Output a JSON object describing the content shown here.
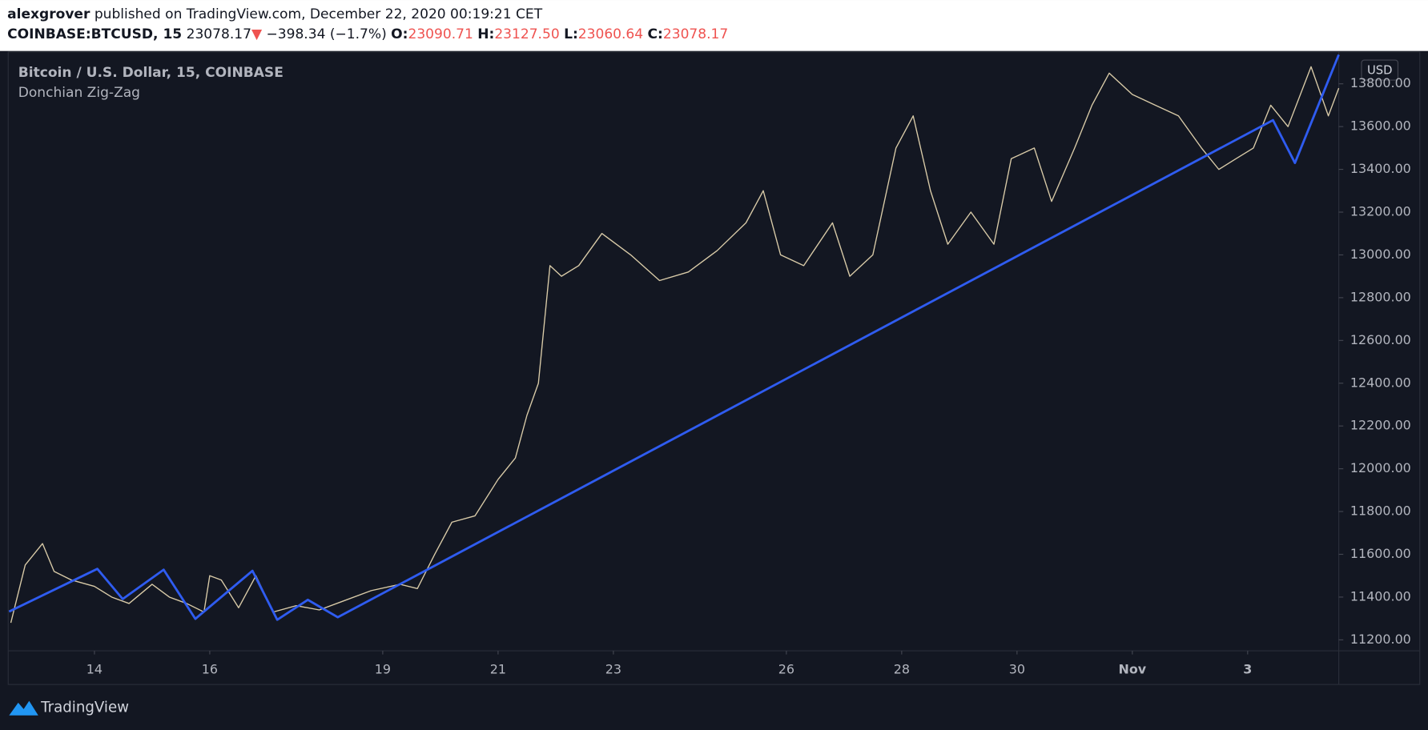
{
  "header": {
    "author": "alexgrover",
    "published": "published on TradingView.com, December 22, 2020 00:19:21 CET",
    "symbol": "COINBASE:BTCUSD, 15",
    "last": "23078.17",
    "arrow": "▼",
    "change": "−398.34 (−1.7%)",
    "o_label": "O:",
    "o": "23090.71",
    "h_label": "H:",
    "h": "23127.50",
    "l_label": "L:",
    "l": "23060.64",
    "c_label": "C:",
    "c": "23078.17"
  },
  "chart_data": {
    "type": "line",
    "currency": "USD",
    "xlim": [
      12.52,
      35.58
    ],
    "xticks": [
      14,
      16,
      19,
      21,
      23,
      26,
      28,
      30,
      {
        "value": 32,
        "label": "Nov"
      },
      {
        "value": 34,
        "label": "3"
      }
    ],
    "ylim": [
      11153,
      13945
    ],
    "yticks": [
      {
        "value": 11200,
        "label": "11200.00"
      },
      {
        "value": 11400,
        "label": "11400.00"
      },
      {
        "value": 11600,
        "label": "11600.00"
      },
      {
        "value": 11800,
        "label": "11800.00"
      },
      {
        "value": 12000,
        "label": "12000.00"
      },
      {
        "value": 12200,
        "label": "12200.00"
      },
      {
        "value": 12400,
        "label": "12400.00"
      },
      {
        "value": 12600,
        "label": "12600.00"
      },
      {
        "value": 12800,
        "label": "12800.00"
      },
      {
        "value": 13000,
        "label": "13000.00"
      },
      {
        "value": 13200,
        "label": "13200.00"
      },
      {
        "value": 13400,
        "label": "13400.00"
      },
      {
        "value": 13600,
        "label": "13600.00"
      },
      {
        "value": 13800,
        "label": "13800.00"
      }
    ],
    "series": [
      {
        "name": "Bitcoin / U.S. Dollar, 15, COINBASE",
        "color": "#d9cba8",
        "x": [
          12.55,
          12.8,
          13.1,
          13.3,
          13.6,
          14.0,
          14.3,
          14.6,
          15.0,
          15.3,
          15.6,
          15.9,
          16.0,
          16.2,
          16.5,
          16.8,
          17.1,
          17.5,
          17.9,
          18.3,
          18.8,
          19.3,
          19.6,
          19.9,
          20.2,
          20.6,
          21.0,
          21.3,
          21.5,
          21.7,
          21.9,
          22.1,
          22.4,
          22.8,
          23.3,
          23.8,
          24.3,
          24.8,
          25.3,
          25.6,
          25.9,
          26.3,
          26.8,
          27.1,
          27.5,
          27.9,
          28.2,
          28.5,
          28.8,
          29.2,
          29.6,
          29.9,
          30.3,
          30.6,
          31.0,
          31.3,
          31.6,
          32.0,
          32.4,
          32.8,
          33.2,
          33.5,
          33.8,
          34.1,
          34.4,
          34.7,
          35.1,
          35.4,
          35.58
        ],
        "values": [
          11280,
          11550,
          11650,
          11520,
          11480,
          11450,
          11400,
          11370,
          11460,
          11400,
          11370,
          11330,
          11500,
          11480,
          11350,
          11500,
          11330,
          11360,
          11340,
          11380,
          11430,
          11460,
          11440,
          11600,
          11750,
          11780,
          11950,
          12050,
          12250,
          12400,
          12950,
          12900,
          12950,
          13100,
          13000,
          12880,
          12920,
          13020,
          13150,
          13300,
          13000,
          12950,
          13150,
          12900,
          13000,
          13500,
          13650,
          13300,
          13050,
          13200,
          13050,
          13450,
          13500,
          13250,
          13500,
          13700,
          13850,
          13750,
          13700,
          13650,
          13500,
          13400,
          13450,
          13500,
          13700,
          13600,
          13880,
          13650,
          13780
        ]
      },
      {
        "name": "Donchian Zig-Zag",
        "color": "#2f5cf0",
        "x": [
          12.52,
          14.05,
          14.49,
          15.2,
          15.75,
          16.74,
          17.17,
          17.7,
          18.22,
          34.44,
          34.82,
          35.58
        ],
        "values": [
          11332,
          11532,
          11391,
          11528,
          11298,
          11523,
          11294,
          11387,
          11306,
          13630,
          13430,
          13936
        ]
      }
    ]
  },
  "footer": {
    "brand": "TradingView"
  }
}
